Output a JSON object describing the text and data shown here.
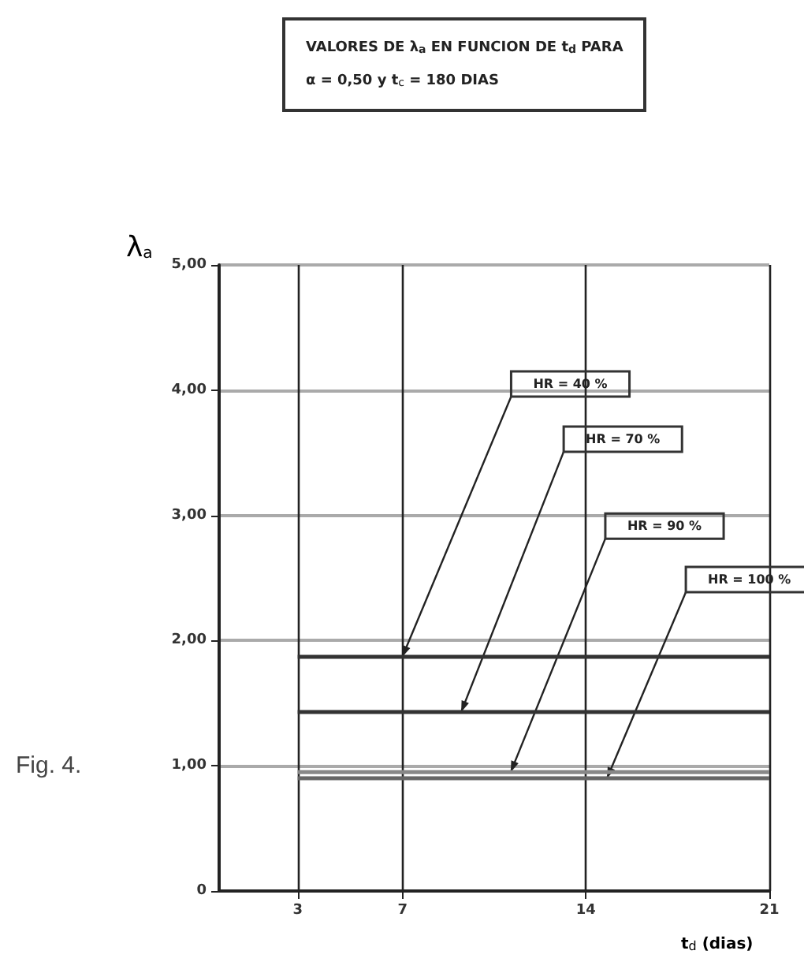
{
  "chart_data": {
    "type": "line",
    "title": "VALORES DE λ$_{a}$ EN FUNCION DE t$_{d}$ PARA",
    "subtitle": "α = 0,50 y t$_{c}$ = 180 DIAS",
    "xlabel": "t$_{d}$ (dias)",
    "ylabel": "λ$_{a}$",
    "x": [
      3,
      21
    ],
    "series": [
      {
        "color": "#333333",
        "values": [
          1.87,
          1.87
        ]
      },
      {
        "color": "#333333",
        "values": [
          1.43,
          1.43
        ]
      },
      {
        "color": "#888888",
        "values": [
          0.95,
          0.95
        ]
      },
      {
        "color": "#666666",
        "values": [
          0.9,
          0.9
        ]
      }
    ],
    "xlim": [
      0,
      21
    ],
    "xticks": [
      3,
      7,
      14,
      21
    ],
    "ylim": [
      0,
      5
    ],
    "yticks": [
      0,
      {
        "value": 1,
        "label": "1,00"
      },
      {
        "value": 2,
        "label": "2,00"
      },
      {
        "value": 3,
        "label": "3,00"
      },
      {
        "value": 4,
        "label": "4,00"
      },
      {
        "value": 5,
        "label": "5,00"
      }
    ],
    "grid": true,
    "marker": "none",
    "line_style": "solid",
    "annotations": [
      "HR = 40 %",
      "HR = 70 %",
      "HR = 90 %",
      "HR = 100 %",
      "Fig. 4."
    ]
  }
}
